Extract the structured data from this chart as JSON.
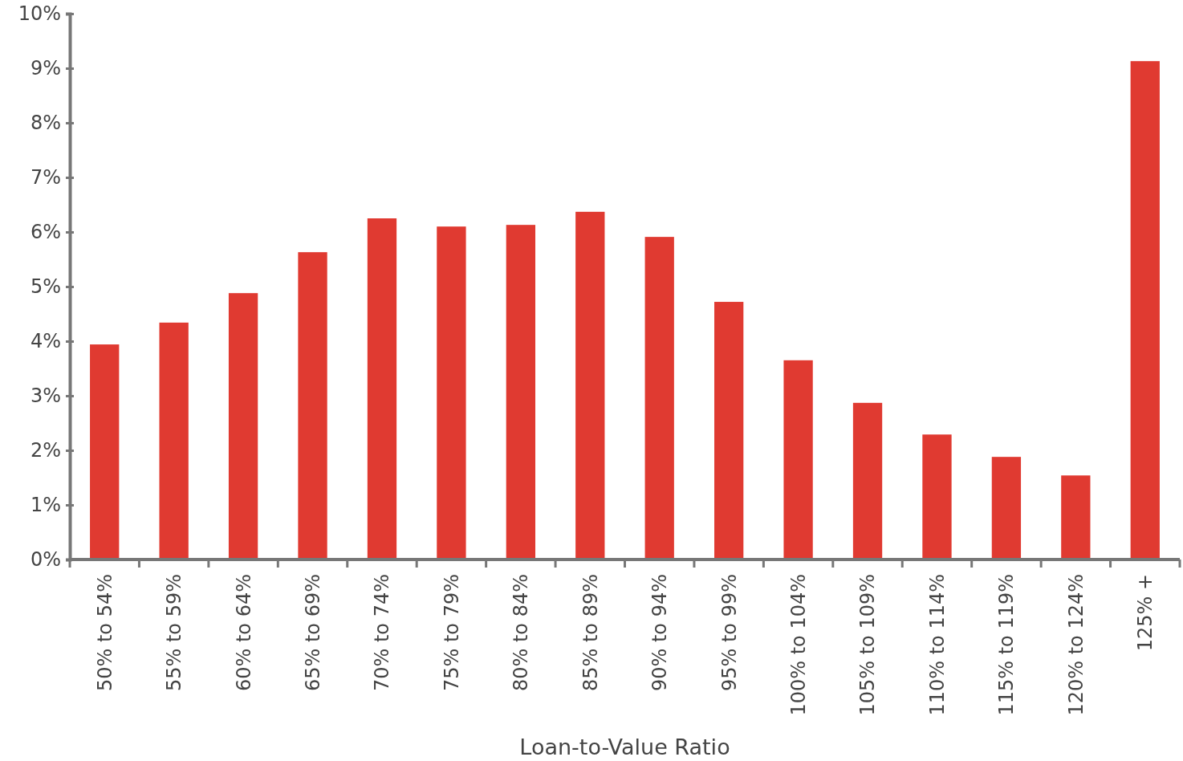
{
  "chart_data": {
    "type": "bar",
    "xlabel": "Loan-to-Value Ratio",
    "categories": [
      "50% to 54%",
      "55% to 59%",
      "60% to 64%",
      "65% to 69%",
      "70% to 74%",
      "75% to 79%",
      "80% to 84%",
      "85% to 89%",
      "90% to 94%",
      "95% to 99%",
      "100% to 104%",
      "105% to 109%",
      "110% to 114%",
      "115% to 119%",
      "120% to 124%",
      "125% +"
    ],
    "values": [
      3.94,
      4.34,
      4.88,
      5.63,
      6.25,
      6.1,
      6.13,
      6.37,
      5.91,
      4.72,
      3.65,
      2.87,
      2.29,
      1.88,
      1.54,
      9.13
    ],
    "color": "#e03a31",
    "ylim": [
      0,
      10
    ],
    "yticks": [
      {
        "value": 0,
        "label": "0%"
      },
      {
        "value": 1,
        "label": "1%"
      },
      {
        "value": 2,
        "label": "2%"
      },
      {
        "value": 3,
        "label": "3%"
      },
      {
        "value": 4,
        "label": "4%"
      },
      {
        "value": 5,
        "label": "5%"
      },
      {
        "value": 6,
        "label": "6%"
      },
      {
        "value": 7,
        "label": "7%"
      },
      {
        "value": 8,
        "label": "8%"
      },
      {
        "value": 9,
        "label": "9%"
      },
      {
        "value": 10,
        "label": "10%"
      }
    ],
    "grid": false
  }
}
